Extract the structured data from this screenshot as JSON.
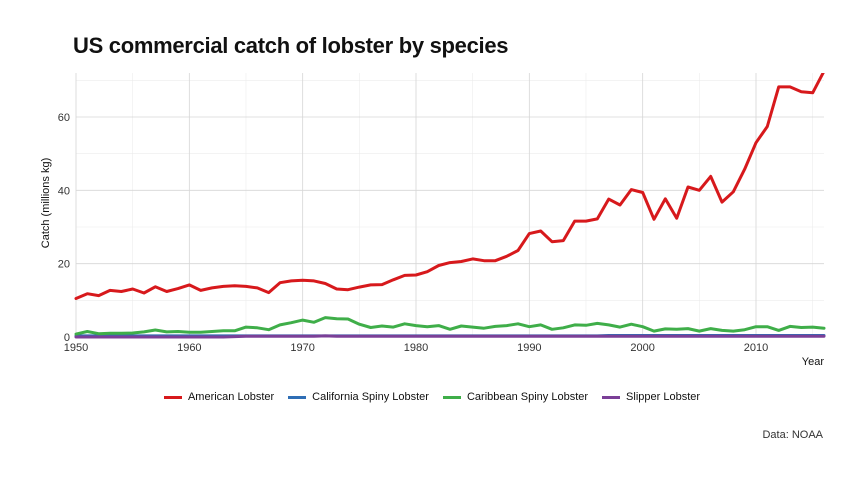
{
  "chart_data": {
    "type": "line",
    "title": "US commercial catch of lobster by species",
    "xlabel": "Year",
    "ylabel": "Catch (millions kg)",
    "caption": "Data: NOAA",
    "xlim": [
      1950,
      2016
    ],
    "ylim": [
      0,
      72
    ],
    "x_ticks": [
      1950,
      1960,
      1970,
      1980,
      1990,
      2000,
      2010
    ],
    "y_ticks": [
      0,
      20,
      40,
      60
    ],
    "grid": true,
    "legend_position": "bottom",
    "x": [
      1950,
      1951,
      1952,
      1953,
      1954,
      1955,
      1956,
      1957,
      1958,
      1959,
      1960,
      1961,
      1962,
      1963,
      1964,
      1965,
      1966,
      1967,
      1968,
      1969,
      1970,
      1971,
      1972,
      1973,
      1974,
      1975,
      1976,
      1977,
      1978,
      1979,
      1980,
      1981,
      1982,
      1983,
      1984,
      1985,
      1986,
      1987,
      1988,
      1989,
      1990,
      1991,
      1992,
      1993,
      1994,
      1995,
      1996,
      1997,
      1998,
      1999,
      2000,
      2001,
      2002,
      2003,
      2004,
      2005,
      2006,
      2007,
      2008,
      2009,
      2010,
      2011,
      2012,
      2013,
      2014,
      2015,
      2016
    ],
    "series": [
      {
        "name": "American Lobster",
        "color": "#d7191c",
        "values": [
          10.5,
          11.8,
          11.3,
          12.7,
          12.4,
          13.1,
          12.0,
          13.7,
          12.4,
          13.2,
          14.2,
          12.7,
          13.4,
          13.8,
          14.0,
          13.8,
          13.4,
          12.1,
          14.8,
          15.3,
          15.5,
          15.3,
          14.6,
          13.1,
          12.9,
          13.6,
          14.2,
          14.3,
          15.6,
          16.8,
          16.9,
          17.8,
          19.5,
          20.3,
          20.6,
          21.3,
          20.8,
          20.8,
          22.0,
          23.6,
          28.2,
          28.9,
          26.0,
          26.3,
          31.6,
          31.6,
          32.2,
          37.6,
          36.0,
          40.2,
          39.4,
          32.1,
          37.7,
          32.4,
          40.9,
          40.0,
          43.8,
          36.8,
          39.6,
          45.8,
          53.0,
          57.4,
          68.2,
          68.2,
          66.9,
          66.6,
          72.5
        ]
      },
      {
        "name": "California Spiny Lobster",
        "color": "#2f6eb5",
        "values": [
          0.3,
          0.3,
          0.3,
          0.3,
          0.3,
          0.3,
          0.3,
          0.3,
          0.3,
          0.3,
          0.3,
          0.3,
          0.3,
          0.3,
          0.3,
          0.3,
          0.3,
          0.3,
          0.3,
          0.3,
          0.3,
          0.3,
          0.3,
          0.3,
          0.3,
          0.3,
          0.3,
          0.3,
          0.3,
          0.3,
          0.3,
          0.3,
          0.3,
          0.3,
          0.3,
          0.3,
          0.3,
          0.3,
          0.3,
          0.3,
          0.3,
          0.3,
          0.3,
          0.3,
          0.3,
          0.3,
          0.3,
          0.4,
          0.4,
          0.4,
          0.4,
          0.4,
          0.4,
          0.4,
          0.4,
          0.4,
          0.4,
          0.4,
          0.4,
          0.4,
          0.4,
          0.4,
          0.4,
          0.4,
          0.4,
          0.4,
          0.4
        ]
      },
      {
        "name": "Caribbean Spiny Lobster",
        "color": "#3fae49",
        "values": [
          0.8,
          1.5,
          0.9,
          1.0,
          1.0,
          1.1,
          1.4,
          1.9,
          1.4,
          1.5,
          1.3,
          1.3,
          1.5,
          1.7,
          1.7,
          2.7,
          2.5,
          2.0,
          3.3,
          3.9,
          4.6,
          4.0,
          5.3,
          5.0,
          4.9,
          3.5,
          2.6,
          3.0,
          2.7,
          3.6,
          3.1,
          2.8,
          3.1,
          2.1,
          3.0,
          2.7,
          2.4,
          2.9,
          3.1,
          3.6,
          2.8,
          3.3,
          2.1,
          2.5,
          3.3,
          3.2,
          3.7,
          3.3,
          2.7,
          3.5,
          2.8,
          1.6,
          2.2,
          2.1,
          2.3,
          1.6,
          2.3,
          1.8,
          1.6,
          2.0,
          2.8,
          2.8,
          1.8,
          2.9,
          2.6,
          2.7,
          2.4
        ]
      },
      {
        "name": "Slipper Lobster",
        "color": "#7b3f97",
        "values": [
          0.0,
          0.0,
          0.0,
          0.0,
          0.0,
          0.0,
          0.0,
          0.0,
          0.0,
          0.0,
          0.0,
          0.0,
          0.0,
          0.0,
          0.1,
          0.2,
          0.2,
          0.2,
          0.2,
          0.2,
          0.2,
          0.2,
          0.3,
          0.2,
          0.2,
          0.2,
          0.2,
          0.2,
          0.2,
          0.2,
          0.2,
          0.2,
          0.2,
          0.2,
          0.2,
          0.2,
          0.2,
          0.2,
          0.2,
          0.2,
          0.2,
          0.2,
          0.2,
          0.2,
          0.2,
          0.2,
          0.2,
          0.2,
          0.2,
          0.2,
          0.2,
          0.2,
          0.2,
          0.2,
          0.2,
          0.2,
          0.2,
          0.2,
          0.2,
          0.2,
          0.2,
          0.2,
          0.2,
          0.2,
          0.2,
          0.2,
          0.2
        ]
      }
    ]
  }
}
